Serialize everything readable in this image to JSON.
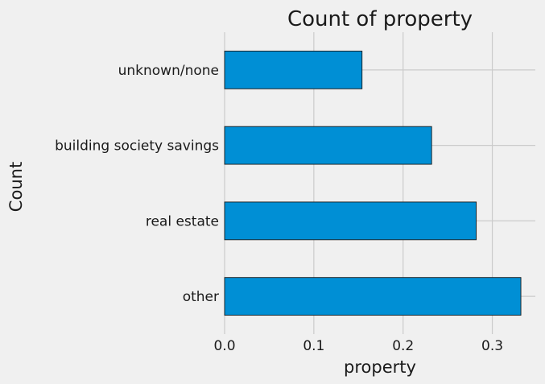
{
  "chart_data": {
    "type": "bar",
    "orientation": "horizontal",
    "title": "Count of property",
    "xlabel": "property",
    "ylabel": "Count",
    "categories": [
      "other",
      "real estate",
      "building society savings",
      "unknown/none"
    ],
    "values": [
      0.332,
      0.282,
      0.232,
      0.154
    ],
    "xlim": [
      0,
      0.35
    ],
    "xticks": [
      "0.0",
      "0.1",
      "0.2",
      "0.3"
    ],
    "grid": true,
    "bar_color": "#008fd5",
    "background": "#f0f0f0"
  }
}
